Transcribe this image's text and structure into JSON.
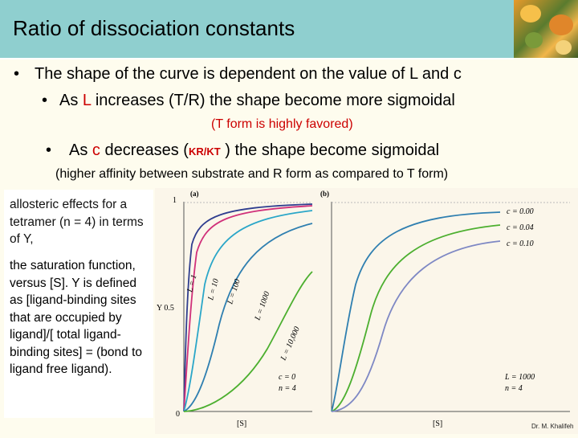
{
  "slide": {
    "title": "Ratio of dissociation constants",
    "bullet1": "The shape of the curve is dependent on the value of L and c",
    "bullet2_pre": "As ",
    "bullet2_L": "L",
    "bullet2_post": " increases (T/R) the shape become more sigmoidal",
    "note1": "(T form is highly favored)",
    "bullet3_pre": "As ",
    "bullet3_c": "c",
    "bullet3_mid": " decreases (",
    "bullet3_ratio": "KR/KT",
    "bullet3_post": " ) the shape become sigmoidal",
    "note2": "(higher affinity between substrate and R form as compared to T form)",
    "side_text_1": "allosteric effects for a tetramer (n = 4) in terms of Y,",
    "side_text_2": "the saturation function, versus [S]. Y is defined as [ligand-binding sites that are occupied by ligand]/[ total ligand-binding sites] = (bond to ligand free ligand).",
    "signature": "Dr. M. Khalifeh"
  },
  "figure": {
    "panel_a": {
      "label": "(a)",
      "y_label": "Y 0.5",
      "y_tick_top": "1",
      "y_tick_bottom": "0",
      "x_label": "[S]",
      "curves": [
        {
          "label": "L = 1",
          "color": "#2f3e8f"
        },
        {
          "label": "L = 10",
          "color": "#d0307a"
        },
        {
          "label": "L = 100",
          "color": "#2aa6c8"
        },
        {
          "label": "L = 1000",
          "color": "#2f7fb0"
        },
        {
          "label": "L = 10,000",
          "color": "#4caf2f"
        }
      ],
      "params": [
        "c = 0",
        "n = 4"
      ]
    },
    "panel_b": {
      "label": "(b)",
      "x_label": "[S]",
      "curves": [
        {
          "label": "c = 0.00",
          "color": "#2f7fb0"
        },
        {
          "label": "c = 0.04",
          "color": "#4caf2f"
        },
        {
          "label": "c = 0.10",
          "color": "#7e88c4"
        }
      ],
      "params": [
        "L = 1000",
        "n = 4"
      ]
    }
  }
}
